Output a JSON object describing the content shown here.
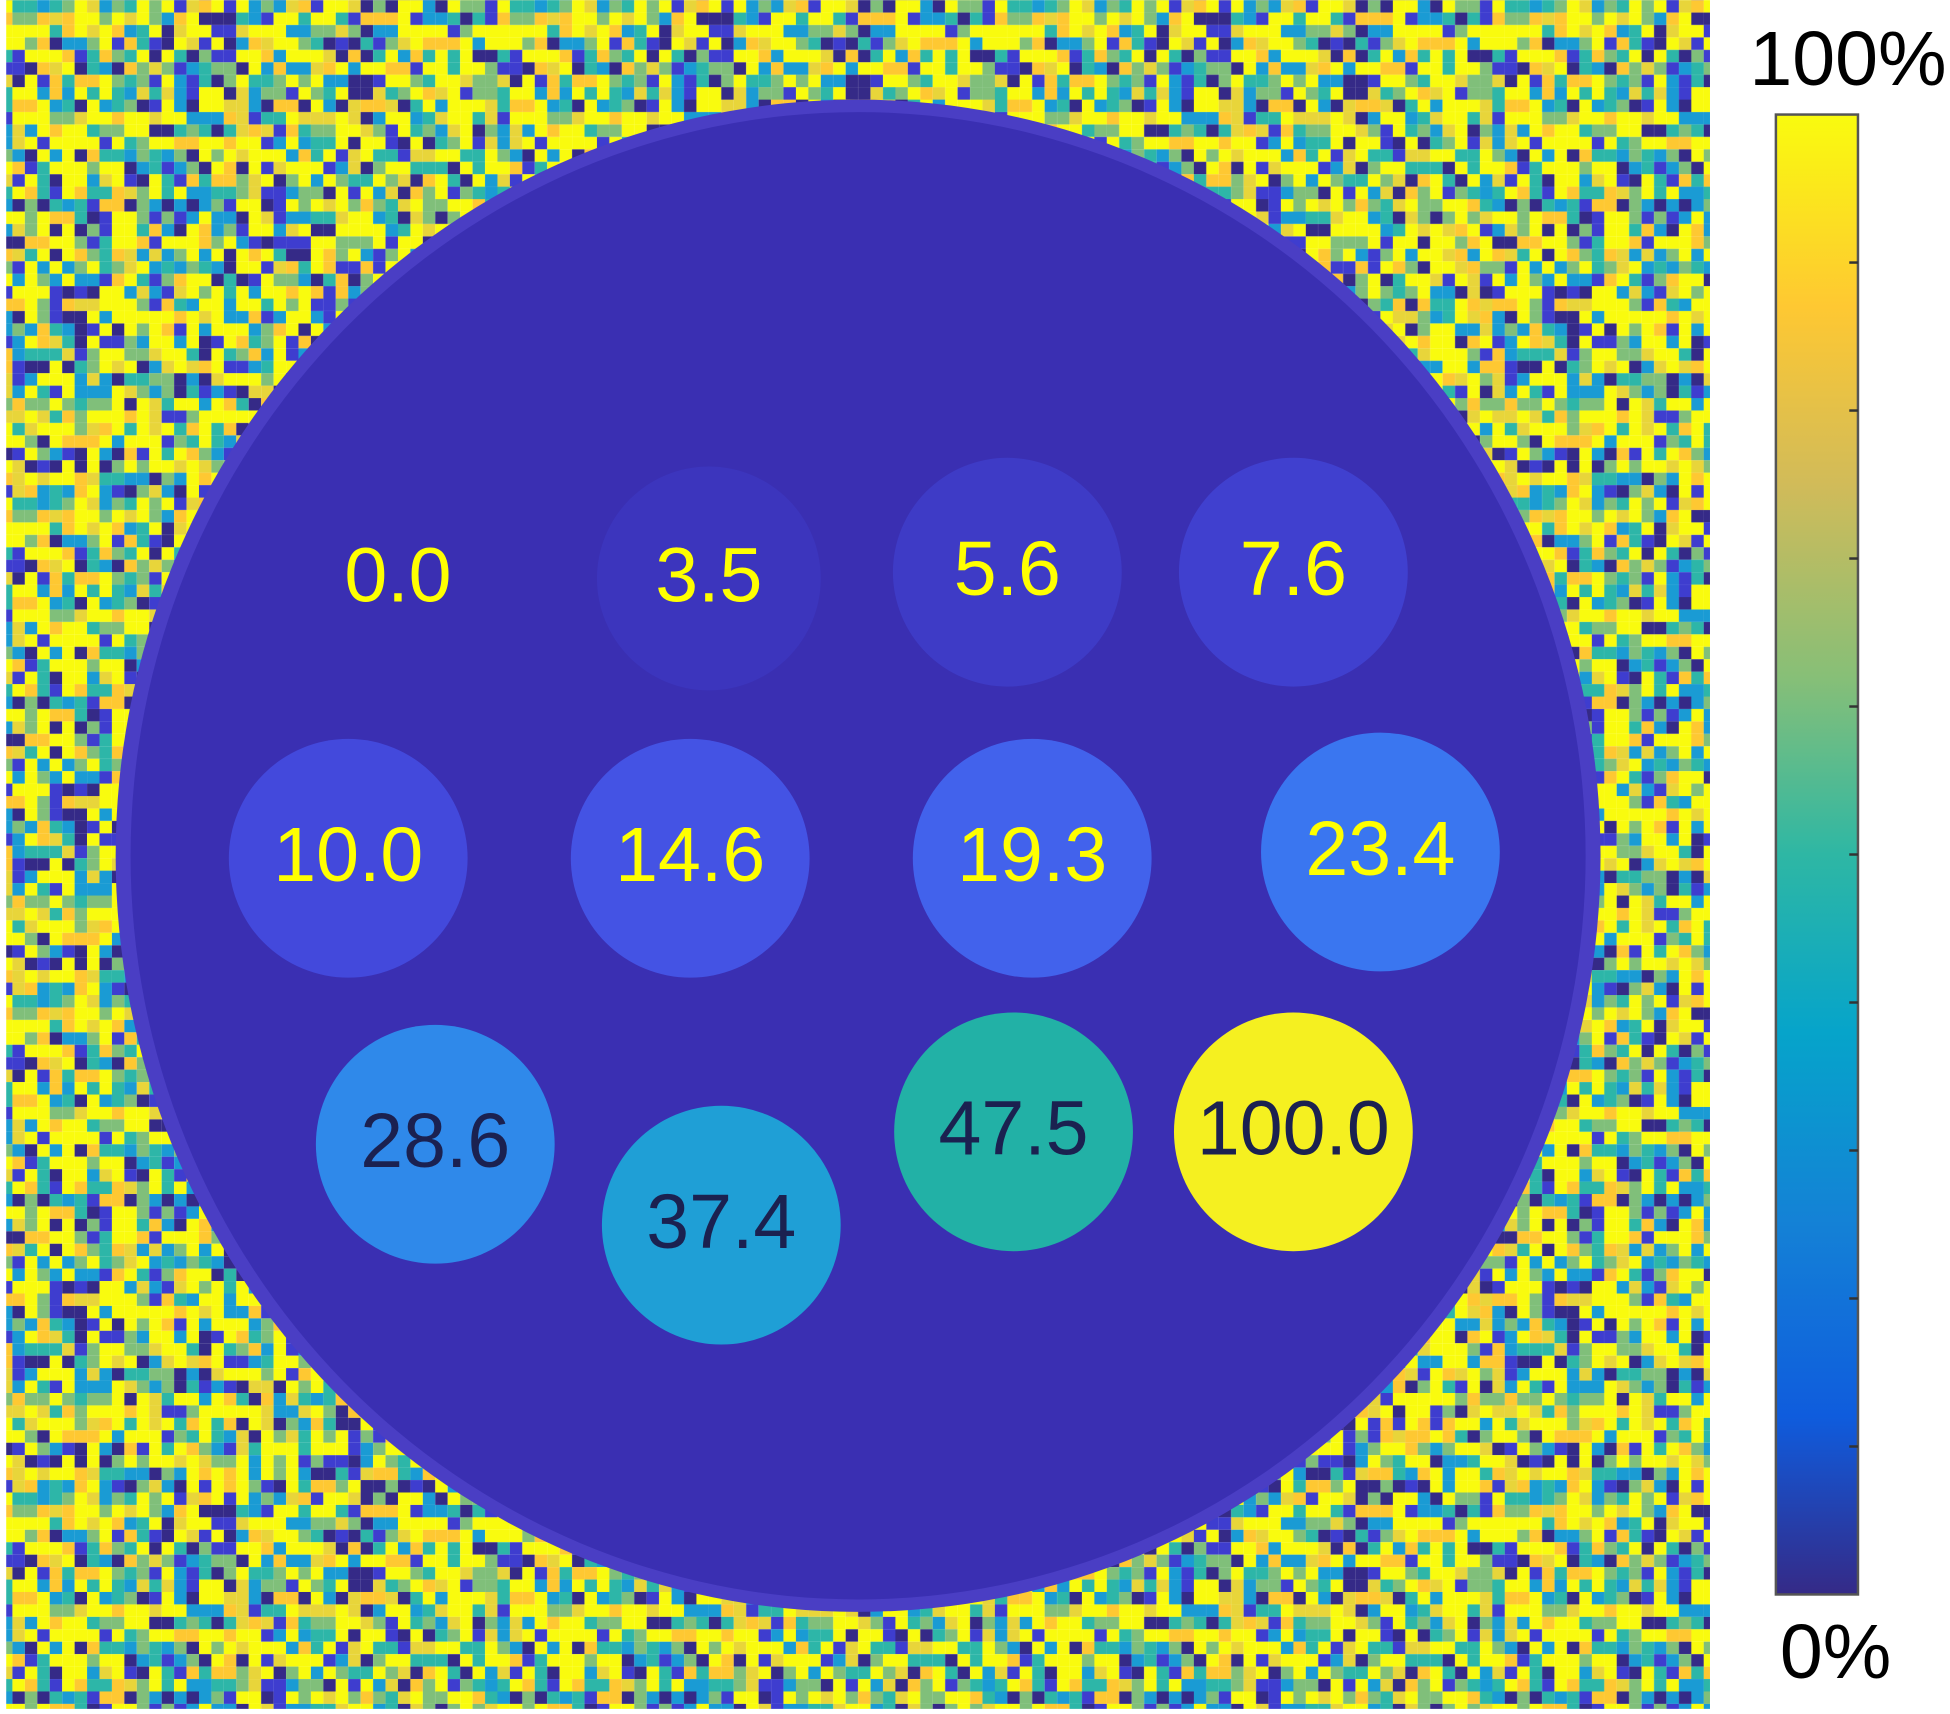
{
  "colorbar": {
    "max_label": "100%",
    "min_label": "0%"
  },
  "vials": [
    {
      "label": "0.0",
      "color": "#3a2fb2",
      "text_color": "#ffff00"
    },
    {
      "label": "3.5",
      "color": "#3c35bd",
      "text_color": "#ffff00"
    },
    {
      "label": "5.6",
      "color": "#3e3bc6",
      "text_color": "#ffff00"
    },
    {
      "label": "7.6",
      "color": "#4040cf",
      "text_color": "#ffff00"
    },
    {
      "label": "10.0",
      "color": "#4349dc",
      "text_color": "#ffff00"
    },
    {
      "label": "14.6",
      "color": "#4453e4",
      "text_color": "#ffff00"
    },
    {
      "label": "19.3",
      "color": "#4262ec",
      "text_color": "#ffff00"
    },
    {
      "label": "23.4",
      "color": "#3a76f0",
      "text_color": "#ffff00"
    },
    {
      "label": "28.6",
      "color": "#2f89ea",
      "text_color": "#1b2150"
    },
    {
      "label": "37.4",
      "color": "#1f9fd6",
      "text_color": "#1b2150"
    },
    {
      "label": "47.5",
      "color": "#22b1a6",
      "text_color": "#1b2150"
    },
    {
      "label": "100.0",
      "color": "#f5f020",
      "text_color": "#1b2150"
    }
  ]
}
